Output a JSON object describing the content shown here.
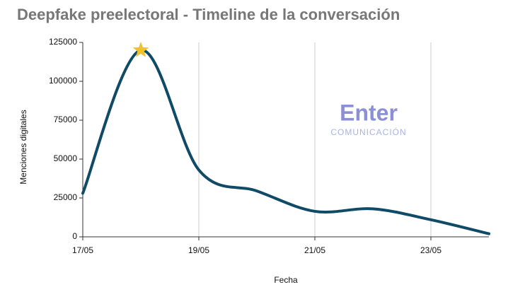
{
  "chart_data": {
    "type": "line",
    "title": "Deepfake preelectoral - Timeline de la conversación",
    "x_label": "Fecha",
    "y_label": "Menciones digitales",
    "categories": [
      "17/05",
      null,
      "19/05",
      null,
      "21/05",
      null,
      "23/05",
      null
    ],
    "series": [
      {
        "name": "Menciones digitales",
        "color": "#0f4a66",
        "values": [
          28000,
          120000,
          43000,
          29500,
          16400,
          18000,
          11000,
          2000
        ]
      }
    ],
    "highlight_index": 1,
    "highlight_color": "#f2c12e",
    "ylim": [
      0,
      125000
    ],
    "yticks": [
      0,
      25000,
      50000,
      75000,
      100000,
      125000
    ],
    "grid": true,
    "logo": {
      "name": "Enter",
      "subtitle": "COMUNICACIÓN"
    }
  }
}
